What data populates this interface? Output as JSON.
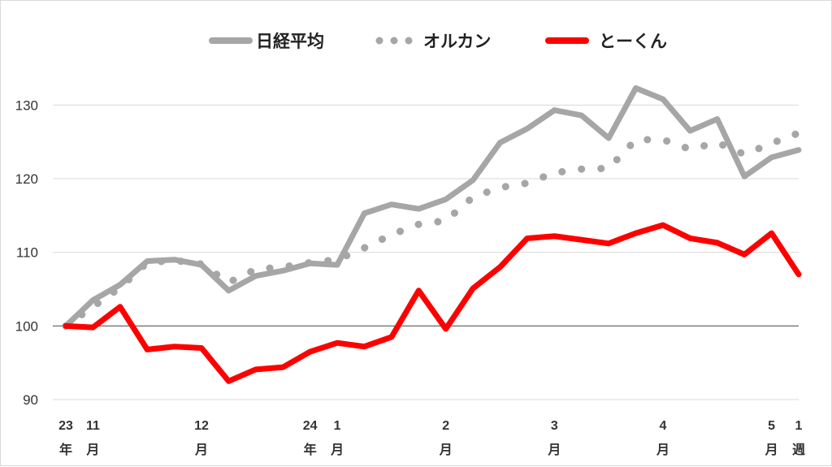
{
  "chart_data": {
    "type": "line",
    "ylim": [
      90,
      135
    ],
    "yticks": [
      90,
      100,
      110,
      120,
      130
    ],
    "grid": true,
    "legend_position": "top",
    "x_tick_labels": [
      {
        "i": 0,
        "lines": [
          "23",
          "年"
        ]
      },
      {
        "i": 1,
        "lines": [
          "11",
          "月"
        ]
      },
      {
        "i": 5,
        "lines": [
          "12",
          "月"
        ]
      },
      {
        "i": 9,
        "lines": [
          "24",
          "年"
        ]
      },
      {
        "i": 10,
        "lines": [
          "1",
          "月"
        ]
      },
      {
        "i": 14,
        "lines": [
          "2",
          "月"
        ]
      },
      {
        "i": 18,
        "lines": [
          "3",
          "月"
        ]
      },
      {
        "i": 22,
        "lines": [
          "4",
          "月"
        ]
      },
      {
        "i": 26,
        "lines": [
          "5",
          "月"
        ]
      },
      {
        "i": 27,
        "lines": [
          "1",
          "週"
        ]
      }
    ],
    "x": [
      0,
      1,
      2,
      3,
      4,
      5,
      6,
      7,
      8,
      9,
      10,
      11,
      12,
      13,
      14,
      15,
      16,
      17,
      18,
      19,
      20,
      21,
      22,
      23,
      24,
      25,
      26,
      27
    ],
    "series": [
      {
        "name": "日経平均",
        "color": "#a6a6a6",
        "style": "solid",
        "values": [
          100,
          103.5,
          105.6,
          108.8,
          109.0,
          108.3,
          104.8,
          106.8,
          107.5,
          108.5,
          108.3,
          115.3,
          116.5,
          115.9,
          117.2,
          119.8,
          124.9,
          126.8,
          129.3,
          128.6,
          125.5,
          132.3,
          130.8,
          126.5,
          128.1,
          120.3,
          122.9,
          123.9
        ]
      },
      {
        "name": "オルカン",
        "color": "#a6a6a6",
        "style": "dotted",
        "values": [
          100,
          102.6,
          105.2,
          108.6,
          108.9,
          108.4,
          105.9,
          107.7,
          108.0,
          108.6,
          109.0,
          110.6,
          112.4,
          113.8,
          114.3,
          117.5,
          118.8,
          119.4,
          120.8,
          121.3,
          121.4,
          125.3,
          125.3,
          124.0,
          124.9,
          123.3,
          124.8,
          126.2
        ]
      },
      {
        "name": "とーくん",
        "color": "#ff0000",
        "style": "solid",
        "values": [
          100,
          99.8,
          102.6,
          96.8,
          97.2,
          97.0,
          92.5,
          94.1,
          94.4,
          96.5,
          97.7,
          97.2,
          98.5,
          104.8,
          99.6,
          105.1,
          108.0,
          111.9,
          112.2,
          111.7,
          111.2,
          112.6,
          113.7,
          111.9,
          111.3,
          109.7,
          112.6,
          107.0
        ]
      }
    ]
  }
}
